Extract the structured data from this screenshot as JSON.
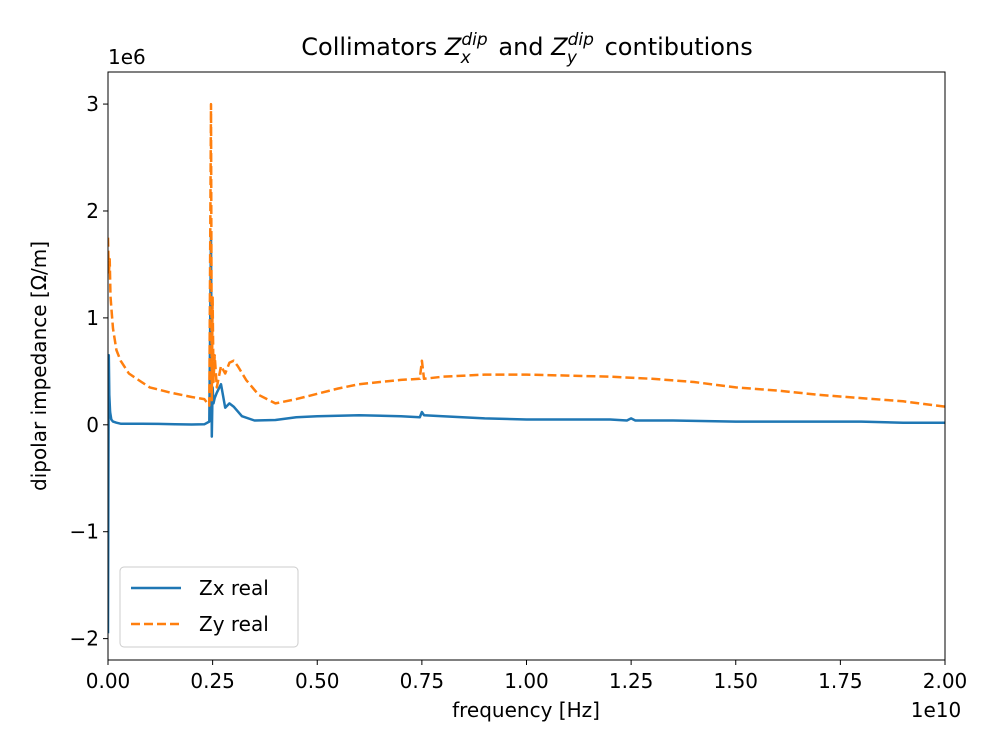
{
  "chart_data": {
    "type": "line",
    "title": "Collimators Z_x^dip and Z_y^dip contibutions",
    "title_parts": {
      "prefix": "Collimators ",
      "zx_base": "Z",
      "zx_sup": "dip",
      "zx_sub": "x",
      "middle": " and ",
      "zy_base": "Z",
      "zy_sup": "dip",
      "zy_sub": "y",
      "suffix": " contibutions"
    },
    "xlabel": "frequency [Hz]",
    "ylabel": "dipolar impedance [Ω/m]",
    "x_offset_text": "1e10",
    "y_offset_text": "1e6",
    "x_scale": 10000000000.0,
    "y_scale": 1000000.0,
    "xlim": [
      0,
      20000000000.0
    ],
    "ylim": [
      -2200000.0,
      3300000.0
    ],
    "x_ticks": [
      0,
      2500000000.0,
      5000000000.0,
      7500000000.0,
      10000000000.0,
      12500000000.0,
      15000000000.0,
      17500000000.0,
      20000000000.0
    ],
    "x_tick_labels": [
      "0.00",
      "0.25",
      "0.50",
      "0.75",
      "1.00",
      "1.25",
      "1.50",
      "1.75",
      "2.00"
    ],
    "y_ticks": [
      -2000000.0,
      -1000000.0,
      0,
      1000000.0,
      2000000.0,
      3000000.0
    ],
    "y_tick_labels": [
      "−2",
      "−1",
      "0",
      "1",
      "2",
      "3"
    ],
    "grid": false,
    "legend_position": "lower-left",
    "series": [
      {
        "name": "Zx real",
        "color": "#1f77b4",
        "style": "solid",
        "x": [
          0,
          10000000.0,
          20000000.0,
          30000000.0,
          50000000.0,
          80000000.0,
          120000000.0,
          200000000.0,
          300000000.0,
          500000000.0,
          800000000.0,
          1200000000.0,
          1600000000.0,
          2000000000.0,
          2300000000.0,
          2420000000.0,
          2460000000.0,
          2480000000.0,
          2500000000.0,
          2520000000.0,
          2550000000.0,
          2600000000.0,
          2700000000.0,
          2800000000.0,
          2900000000.0,
          3000000000.0,
          3200000000.0,
          3500000000.0,
          4000000000.0,
          4500000000.0,
          5000000000.0,
          6000000000.0,
          7000000000.0,
          7450000000.0,
          7500000000.0,
          7550000000.0,
          8000000000.0,
          9000000000.0,
          10000000000.0,
          11000000000.0,
          12000000000.0,
          12400000000.0,
          12500000000.0,
          12600000000.0,
          13500000000.0,
          15000000000.0,
          16500000000.0,
          18000000000.0,
          19000000000.0,
          20000000000.0
        ],
        "y": [
          -1950000.0,
          -450000.0,
          650000.0,
          280000.0,
          120000.0,
          50000.0,
          30000.0,
          20000.0,
          10000.0,
          10000.0,
          10000.0,
          8000.0,
          5000.0,
          3000.0,
          5000.0,
          30000.0,
          1800000.0,
          -110000.0,
          350000.0,
          200000.0,
          250000.0,
          300000.0,
          380000.0,
          160000.0,
          200000.0,
          170000.0,
          80000.0,
          40000.0,
          45000.0,
          70000.0,
          80000.0,
          90000.0,
          80000.0,
          70000.0,
          120000.0,
          90000.0,
          80000.0,
          60000.0,
          50000.0,
          50000.0,
          50000.0,
          40000.0,
          60000.0,
          40000.0,
          40000.0,
          30000.0,
          30000.0,
          30000.0,
          20000.0,
          20000.0
        ]
      },
      {
        "name": "Zy real",
        "color": "#ff7f0e",
        "style": "dashed",
        "x": [
          0,
          20000000.0,
          40000000.0,
          60000000.0,
          80000000.0,
          120000000.0,
          200000000.0,
          300000000.0,
          500000000.0,
          800000000.0,
          1000000000.0,
          1500000000.0,
          2000000000.0,
          2300000000.0,
          2420000000.0,
          2460000000.0,
          2480000000.0,
          2500000000.0,
          2520000000.0,
          2550000000.0,
          2600000000.0,
          2700000000.0,
          2800000000.0,
          2900000000.0,
          3000000000.0,
          3100000000.0,
          3300000000.0,
          3600000000.0,
          4000000000.0,
          4500000000.0,
          5000000000.0,
          5500000000.0,
          6000000000.0,
          6500000000.0,
          7000000000.0,
          7450000000.0,
          7500000000.0,
          7550000000.0,
          8000000000.0,
          9000000000.0,
          10000000000.0,
          11000000000.0,
          12000000000.0,
          13000000000.0,
          14000000000.0,
          15000000000.0,
          16000000000.0,
          17000000000.0,
          18000000000.0,
          19000000000.0,
          20000000000.0
        ],
        "y": [
          1750000.0,
          1400000.0,
          1550000.0,
          1200000.0,
          1100000.0,
          900000.0,
          700000.0,
          600000.0,
          480000.0,
          400000.0,
          350000.0,
          300000.0,
          260000.0,
          240000.0,
          180000.0,
          3000000.0,
          230000.0,
          1200000.0,
          400000.0,
          650000.0,
          350000.0,
          550000.0,
          480000.0,
          580000.0,
          600000.0,
          550000.0,
          420000.0,
          280000.0,
          200000.0,
          240000.0,
          290000.0,
          340000.0,
          380000.0,
          400000.0,
          420000.0,
          430000.0,
          600000.0,
          430000.0,
          450000.0,
          470000.0,
          470000.0,
          460000.0,
          450000.0,
          430000.0,
          400000.0,
          350000.0,
          320000.0,
          280000.0,
          250000.0,
          220000.0,
          170000.0
        ]
      }
    ]
  }
}
